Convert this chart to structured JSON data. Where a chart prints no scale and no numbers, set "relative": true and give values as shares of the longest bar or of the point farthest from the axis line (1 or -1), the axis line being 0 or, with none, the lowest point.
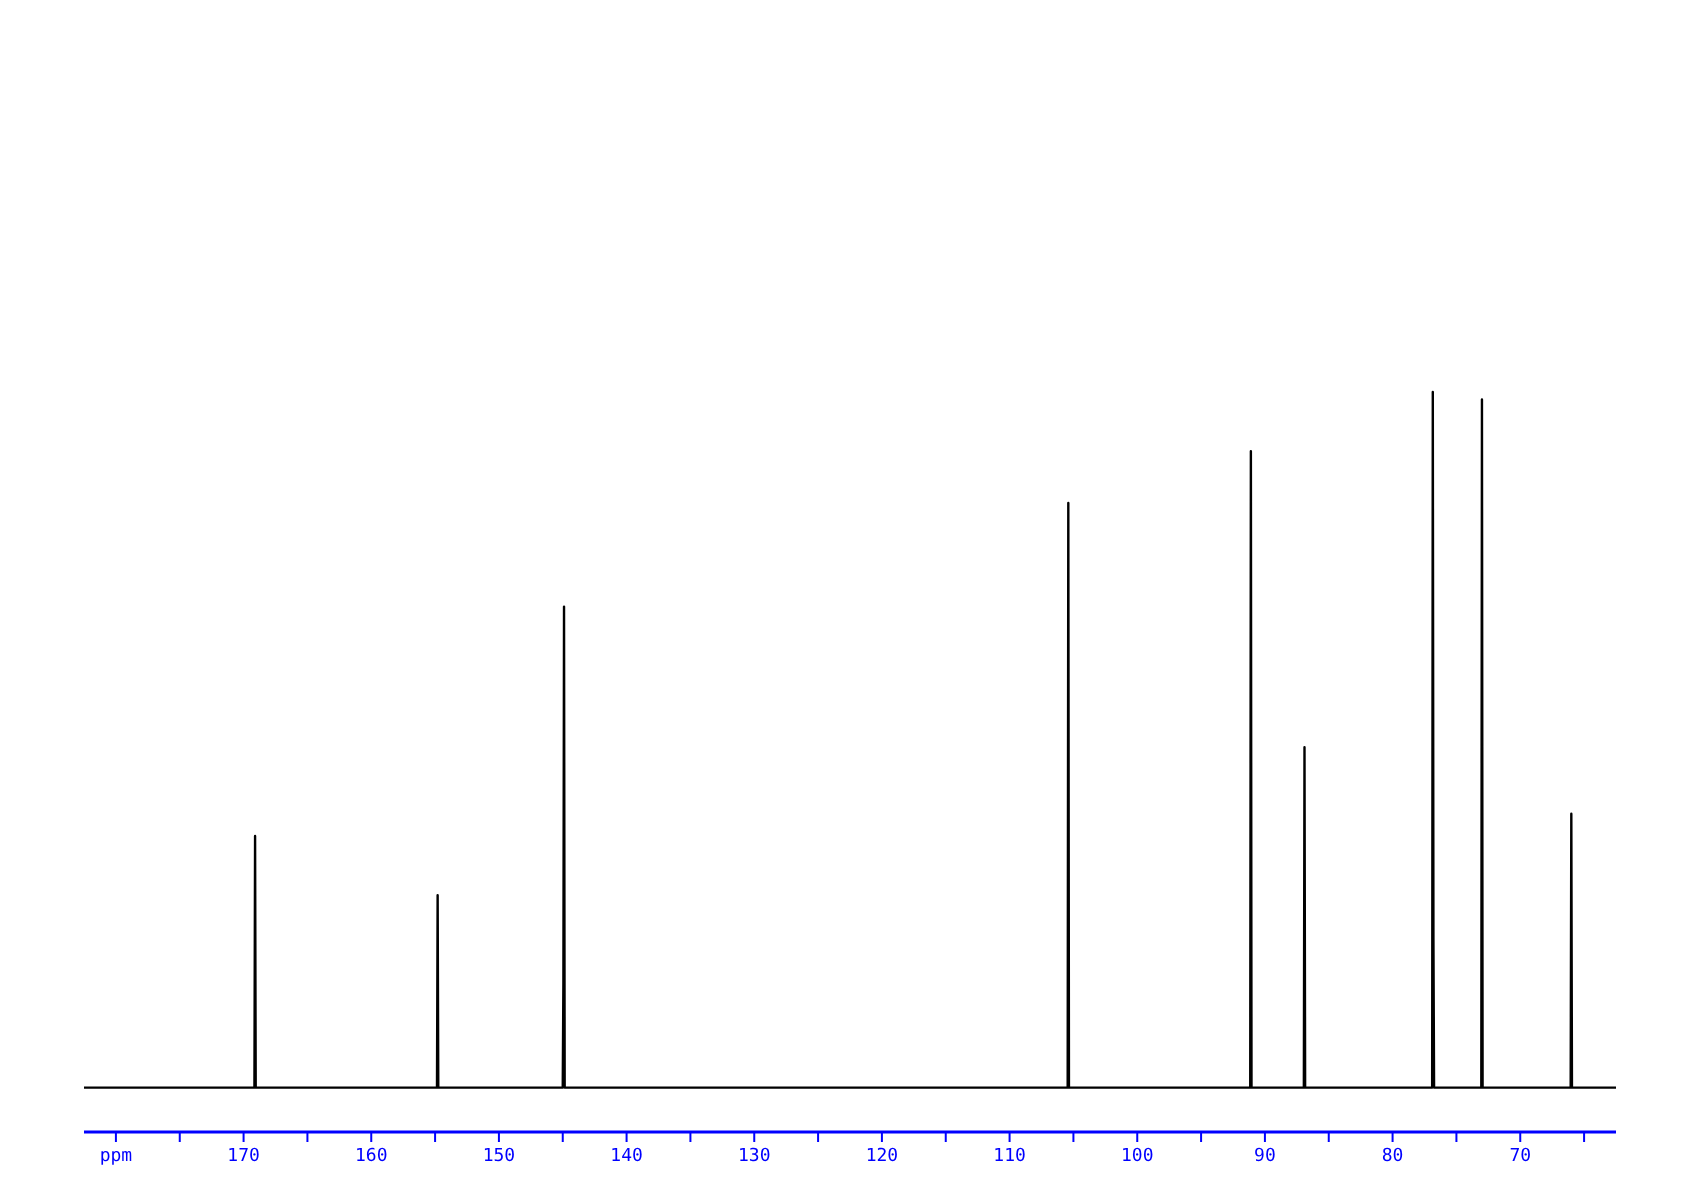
{
  "chart_data": {
    "type": "line",
    "relative": true,
    "xlim": [
      182.5,
      62.5
    ],
    "xticks": [
      {
        "value": 180,
        "label": "ppm"
      },
      {
        "value": 175,
        "label": null
      },
      170,
      {
        "value": 165,
        "label": null
      },
      160,
      {
        "value": 155,
        "label": null
      },
      150,
      {
        "value": 145,
        "label": null
      },
      140,
      {
        "value": 135,
        "label": null
      },
      130,
      {
        "value": 125,
        "label": null
      },
      120,
      {
        "value": 115,
        "label": null
      },
      110,
      {
        "value": 105,
        "label": null
      },
      100,
      {
        "value": 95,
        "label": null
      },
      90,
      {
        "value": 85,
        "label": null
      },
      80,
      {
        "value": 75,
        "label": null
      },
      70,
      {
        "value": 65,
        "label": null
      }
    ],
    "tick_labels": "x",
    "series": [
      {
        "color": "#000000",
        "x": [
          182.5,
          169.15,
          169.1,
          169.05,
          154.85,
          154.8,
          154.75,
          145.0,
          144.95,
          144.9,
          144.85,
          105.45,
          105.4,
          105.35,
          91.15,
          91.1,
          91.05,
          86.95,
          86.9,
          86.85,
          76.9,
          76.85,
          76.8,
          76.75,
          73.05,
          73.0,
          72.95,
          66.05,
          66.0,
          65.95,
          62.5
        ],
        "values": [
          0.06,
          0.06,
          0.4,
          0.06,
          0.06,
          0.32,
          0.06,
          0.06,
          0.2,
          0.71,
          0.06,
          0.06,
          0.85,
          0.06,
          0.06,
          0.92,
          0.06,
          0.06,
          0.52,
          0.06,
          0.06,
          1,
          0.26,
          0.06,
          0.06,
          0.99,
          0.06,
          0.06,
          0.43,
          0.06,
          0.06
        ]
      }
    ]
  }
}
